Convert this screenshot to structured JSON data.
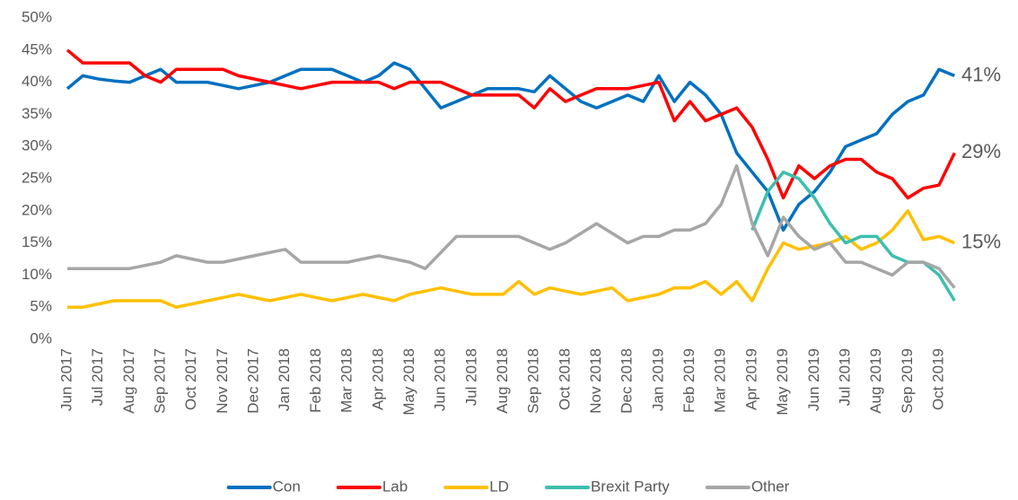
{
  "chart_data": {
    "type": "line",
    "categories": [
      "Jun 2017",
      null,
      "Jul 2017",
      null,
      "Aug 2017",
      null,
      "Sep 2017",
      null,
      "Oct 2017",
      null,
      "Nov 2017",
      null,
      "Dec 2017",
      null,
      "Jan 2018",
      null,
      "Feb 2018",
      null,
      "Mar 2018",
      null,
      "Apr 2018",
      null,
      "May 2018",
      null,
      "Jun 2018",
      null,
      "Jul 2018",
      null,
      "Aug 2018",
      null,
      "Sep 2018",
      null,
      "Oct 2018",
      null,
      "Nov 2018",
      null,
      "Dec 2018",
      null,
      "Jan 2019",
      null,
      "Feb 2019",
      null,
      "Mar 2019",
      null,
      "Apr 2019",
      null,
      "May 2019",
      null,
      "Jun 2019",
      null,
      "Jul 2019",
      null,
      "Aug 2019",
      null,
      "Sep 2019",
      null,
      "Oct 2019",
      null
    ],
    "series": [
      {
        "name": "Con",
        "color": "#0070c0",
        "values": [
          39,
          41,
          40.5,
          40.2,
          40,
          41,
          42,
          40,
          40,
          40,
          39.5,
          39,
          39.5,
          40,
          41,
          42,
          42,
          42,
          41,
          40,
          41,
          43,
          42,
          39,
          36,
          37,
          38,
          39,
          39,
          39,
          38.5,
          41,
          39,
          37,
          36,
          37,
          38,
          37,
          41,
          37,
          40,
          38,
          35,
          29,
          26,
          23,
          17,
          21,
          23,
          26,
          30,
          31,
          32,
          35,
          37,
          38,
          42,
          41
        ],
        "value_labels": [
          null,
          null,
          null,
          null,
          null,
          null,
          null,
          null,
          null,
          null,
          null,
          null,
          null,
          null,
          null,
          null,
          null,
          null,
          null,
          null,
          null,
          null,
          null,
          null,
          null,
          null,
          null,
          null,
          null,
          null,
          null,
          null,
          null,
          null,
          null,
          null,
          null,
          null,
          null,
          null,
          null,
          null,
          null,
          null,
          null,
          null,
          null,
          null,
          null,
          null,
          null,
          null,
          null,
          null,
          null,
          null,
          null,
          "41%"
        ]
      },
      {
        "name": "Lab",
        "color": "#ff0000",
        "values": [
          45,
          43,
          43,
          43,
          43,
          41,
          40,
          42,
          42,
          42,
          42,
          41,
          40.5,
          40,
          39.5,
          39,
          39.5,
          40,
          40,
          40,
          40,
          39,
          40,
          40,
          40,
          39,
          38,
          38,
          38,
          38,
          36,
          39,
          37,
          38,
          39,
          39,
          39,
          39.5,
          40,
          34,
          37,
          34,
          35,
          36,
          33,
          28,
          22,
          27,
          25,
          27,
          28,
          28,
          26,
          25,
          22,
          23.5,
          24,
          29
        ],
        "value_labels": [
          null,
          null,
          null,
          null,
          null,
          null,
          null,
          null,
          null,
          null,
          null,
          null,
          null,
          null,
          null,
          null,
          null,
          null,
          null,
          null,
          null,
          null,
          null,
          null,
          null,
          null,
          null,
          null,
          null,
          null,
          null,
          null,
          null,
          null,
          null,
          null,
          null,
          null,
          null,
          null,
          null,
          null,
          null,
          null,
          null,
          null,
          null,
          null,
          null,
          null,
          null,
          null,
          null,
          null,
          null,
          null,
          null,
          "29%"
        ]
      },
      {
        "name": "LD",
        "color": "#ffc000",
        "values": [
          5,
          5,
          5.5,
          6,
          6,
          6,
          6,
          5,
          5.5,
          6,
          6.5,
          7,
          6.5,
          6,
          6.5,
          7,
          6.5,
          6,
          6.5,
          7,
          6.5,
          6,
          7,
          7.5,
          8,
          7.5,
          7,
          7,
          7,
          9,
          7,
          8,
          7.5,
          7,
          7.5,
          8,
          6,
          6.5,
          7,
          8,
          8,
          9,
          7,
          9,
          6,
          11,
          15,
          14,
          14.5,
          15,
          16,
          14,
          15,
          17,
          20,
          15.5,
          16,
          15
        ],
        "value_labels": [
          null,
          null,
          null,
          null,
          null,
          null,
          null,
          null,
          null,
          null,
          null,
          null,
          null,
          null,
          null,
          null,
          null,
          null,
          null,
          null,
          null,
          null,
          null,
          null,
          null,
          null,
          null,
          null,
          null,
          null,
          null,
          null,
          null,
          null,
          null,
          null,
          null,
          null,
          null,
          null,
          null,
          null,
          null,
          null,
          null,
          null,
          null,
          null,
          null,
          null,
          null,
          null,
          null,
          null,
          null,
          null,
          null,
          "15%"
        ]
      },
      {
        "name": "Brexit Party",
        "color": "#3dbfad",
        "values": [
          null,
          null,
          null,
          null,
          null,
          null,
          null,
          null,
          null,
          null,
          null,
          null,
          null,
          null,
          null,
          null,
          null,
          null,
          null,
          null,
          null,
          null,
          null,
          null,
          null,
          null,
          null,
          null,
          null,
          null,
          null,
          null,
          null,
          null,
          null,
          null,
          null,
          null,
          null,
          null,
          null,
          null,
          null,
          null,
          17,
          23,
          26,
          25,
          22,
          18,
          15,
          16,
          16,
          13,
          12,
          12,
          10,
          6
        ]
      },
      {
        "name": "Other",
        "color": "#a6a6a6",
        "values": [
          11,
          11,
          11,
          11,
          11,
          11.5,
          12,
          13,
          12.5,
          12,
          12,
          12.5,
          13,
          13.5,
          14,
          12,
          12,
          12,
          12,
          12.5,
          13,
          12.5,
          12,
          11,
          13.5,
          16,
          16,
          16,
          16,
          16,
          15,
          14,
          15,
          16.5,
          18,
          16.5,
          15,
          16,
          16,
          17,
          17,
          18,
          21,
          27,
          18,
          13,
          19,
          16,
          14,
          15,
          12,
          12,
          11,
          10,
          12,
          12,
          11,
          8
        ]
      }
    ],
    "ylim": [
      0,
      50
    ],
    "yticks": [
      {
        "value": 0,
        "label": "0%"
      },
      {
        "value": 5,
        "label": "5%"
      },
      {
        "value": 10,
        "label": "10%"
      },
      {
        "value": 15,
        "label": "15%"
      },
      {
        "value": 20,
        "label": "20%"
      },
      {
        "value": 25,
        "label": "25%"
      },
      {
        "value": 30,
        "label": "30%"
      },
      {
        "value": 35,
        "label": "35%"
      },
      {
        "value": 40,
        "label": "40%"
      },
      {
        "value": 45,
        "label": "45%"
      },
      {
        "value": 50,
        "label": "50%"
      }
    ],
    "grid": false,
    "legend": "bottom"
  }
}
